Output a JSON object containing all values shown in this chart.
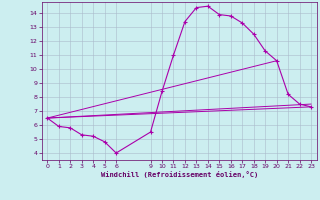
{
  "xlabel": "Windchill (Refroidissement éolien,°C)",
  "background_color": "#cceef0",
  "grid_color": "#aabbcc",
  "line_color": "#aa00aa",
  "xlim": [
    -0.5,
    23.5
  ],
  "ylim": [
    3.5,
    14.8
  ],
  "yticks": [
    4,
    5,
    6,
    7,
    8,
    9,
    10,
    11,
    12,
    13,
    14
  ],
  "xticks": [
    0,
    1,
    2,
    3,
    4,
    5,
    6,
    9,
    10,
    11,
    12,
    13,
    14,
    15,
    16,
    17,
    18,
    19,
    20,
    21,
    22,
    23
  ],
  "series_main": {
    "x": [
      0,
      1,
      2,
      3,
      4,
      5,
      6,
      9,
      10,
      11,
      12,
      13,
      14,
      15,
      16,
      17,
      18,
      19,
      20,
      21,
      22,
      23
    ],
    "y": [
      6.5,
      5.9,
      5.8,
      5.3,
      5.2,
      4.8,
      4.0,
      5.5,
      8.4,
      11.0,
      13.4,
      14.4,
      14.5,
      13.9,
      13.8,
      13.3,
      12.5,
      11.3,
      10.6,
      8.2,
      7.5,
      7.3
    ]
  },
  "series_lines": [
    {
      "x": [
        0,
        23
      ],
      "y": [
        6.5,
        7.3
      ]
    },
    {
      "x": [
        0,
        23
      ],
      "y": [
        6.5,
        7.5
      ]
    },
    {
      "x": [
        0,
        20
      ],
      "y": [
        6.5,
        10.6
      ]
    }
  ]
}
